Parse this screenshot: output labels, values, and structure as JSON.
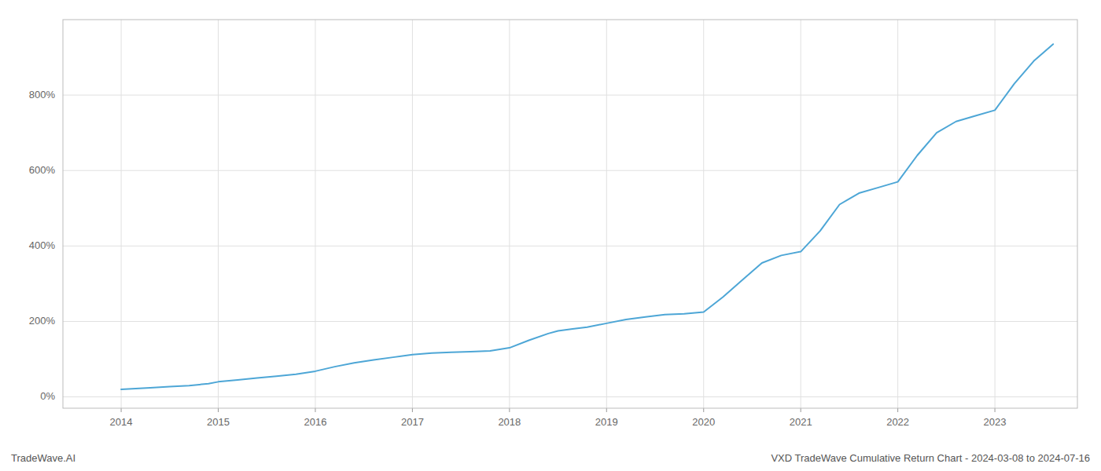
{
  "chart_data": {
    "type": "line",
    "title": "VXD TradeWave Cumulative Return Chart - 2024-03-08 to 2024-07-16",
    "annotations": [
      "TradeWave.AI"
    ],
    "color": "#4da6d6",
    "grid": true,
    "xlim": [
      2013.4,
      2023.85
    ],
    "xticks": [
      2014,
      2015,
      2016,
      2017,
      2018,
      2019,
      2020,
      2021,
      2022,
      2023
    ],
    "ylim": [
      -30,
      1000
    ],
    "yticks": [
      {
        "value": 0,
        "label": "0%"
      },
      {
        "value": 200,
        "label": "200%"
      },
      {
        "value": 400,
        "label": "400%"
      },
      {
        "value": 600,
        "label": "600%"
      },
      {
        "value": 800,
        "label": "800%"
      }
    ],
    "x": [
      2014.0,
      2014.15,
      2014.3,
      2014.5,
      2014.7,
      2014.9,
      2015.0,
      2015.2,
      2015.4,
      2015.6,
      2015.8,
      2016.0,
      2016.2,
      2016.4,
      2016.6,
      2016.8,
      2017.0,
      2017.2,
      2017.4,
      2017.6,
      2017.8,
      2018.0,
      2018.2,
      2018.4,
      2018.5,
      2018.65,
      2018.8,
      2019.0,
      2019.2,
      2019.4,
      2019.6,
      2019.8,
      2020.0,
      2020.2,
      2020.4,
      2020.6,
      2020.8,
      2021.0,
      2021.2,
      2021.4,
      2021.6,
      2021.8,
      2022.0,
      2022.2,
      2022.4,
      2022.6,
      2022.8,
      2023.0,
      2023.2,
      2023.4,
      2023.6
    ],
    "values": [
      20,
      22,
      24,
      27,
      30,
      35,
      40,
      45,
      50,
      55,
      60,
      68,
      80,
      90,
      98,
      105,
      112,
      116,
      118,
      120,
      122,
      130,
      150,
      168,
      175,
      180,
      185,
      195,
      205,
      212,
      218,
      220,
      225,
      265,
      310,
      355,
      375,
      385,
      440,
      510,
      540,
      555,
      570,
      640,
      700,
      730,
      745,
      760,
      830,
      890,
      935
    ]
  }
}
